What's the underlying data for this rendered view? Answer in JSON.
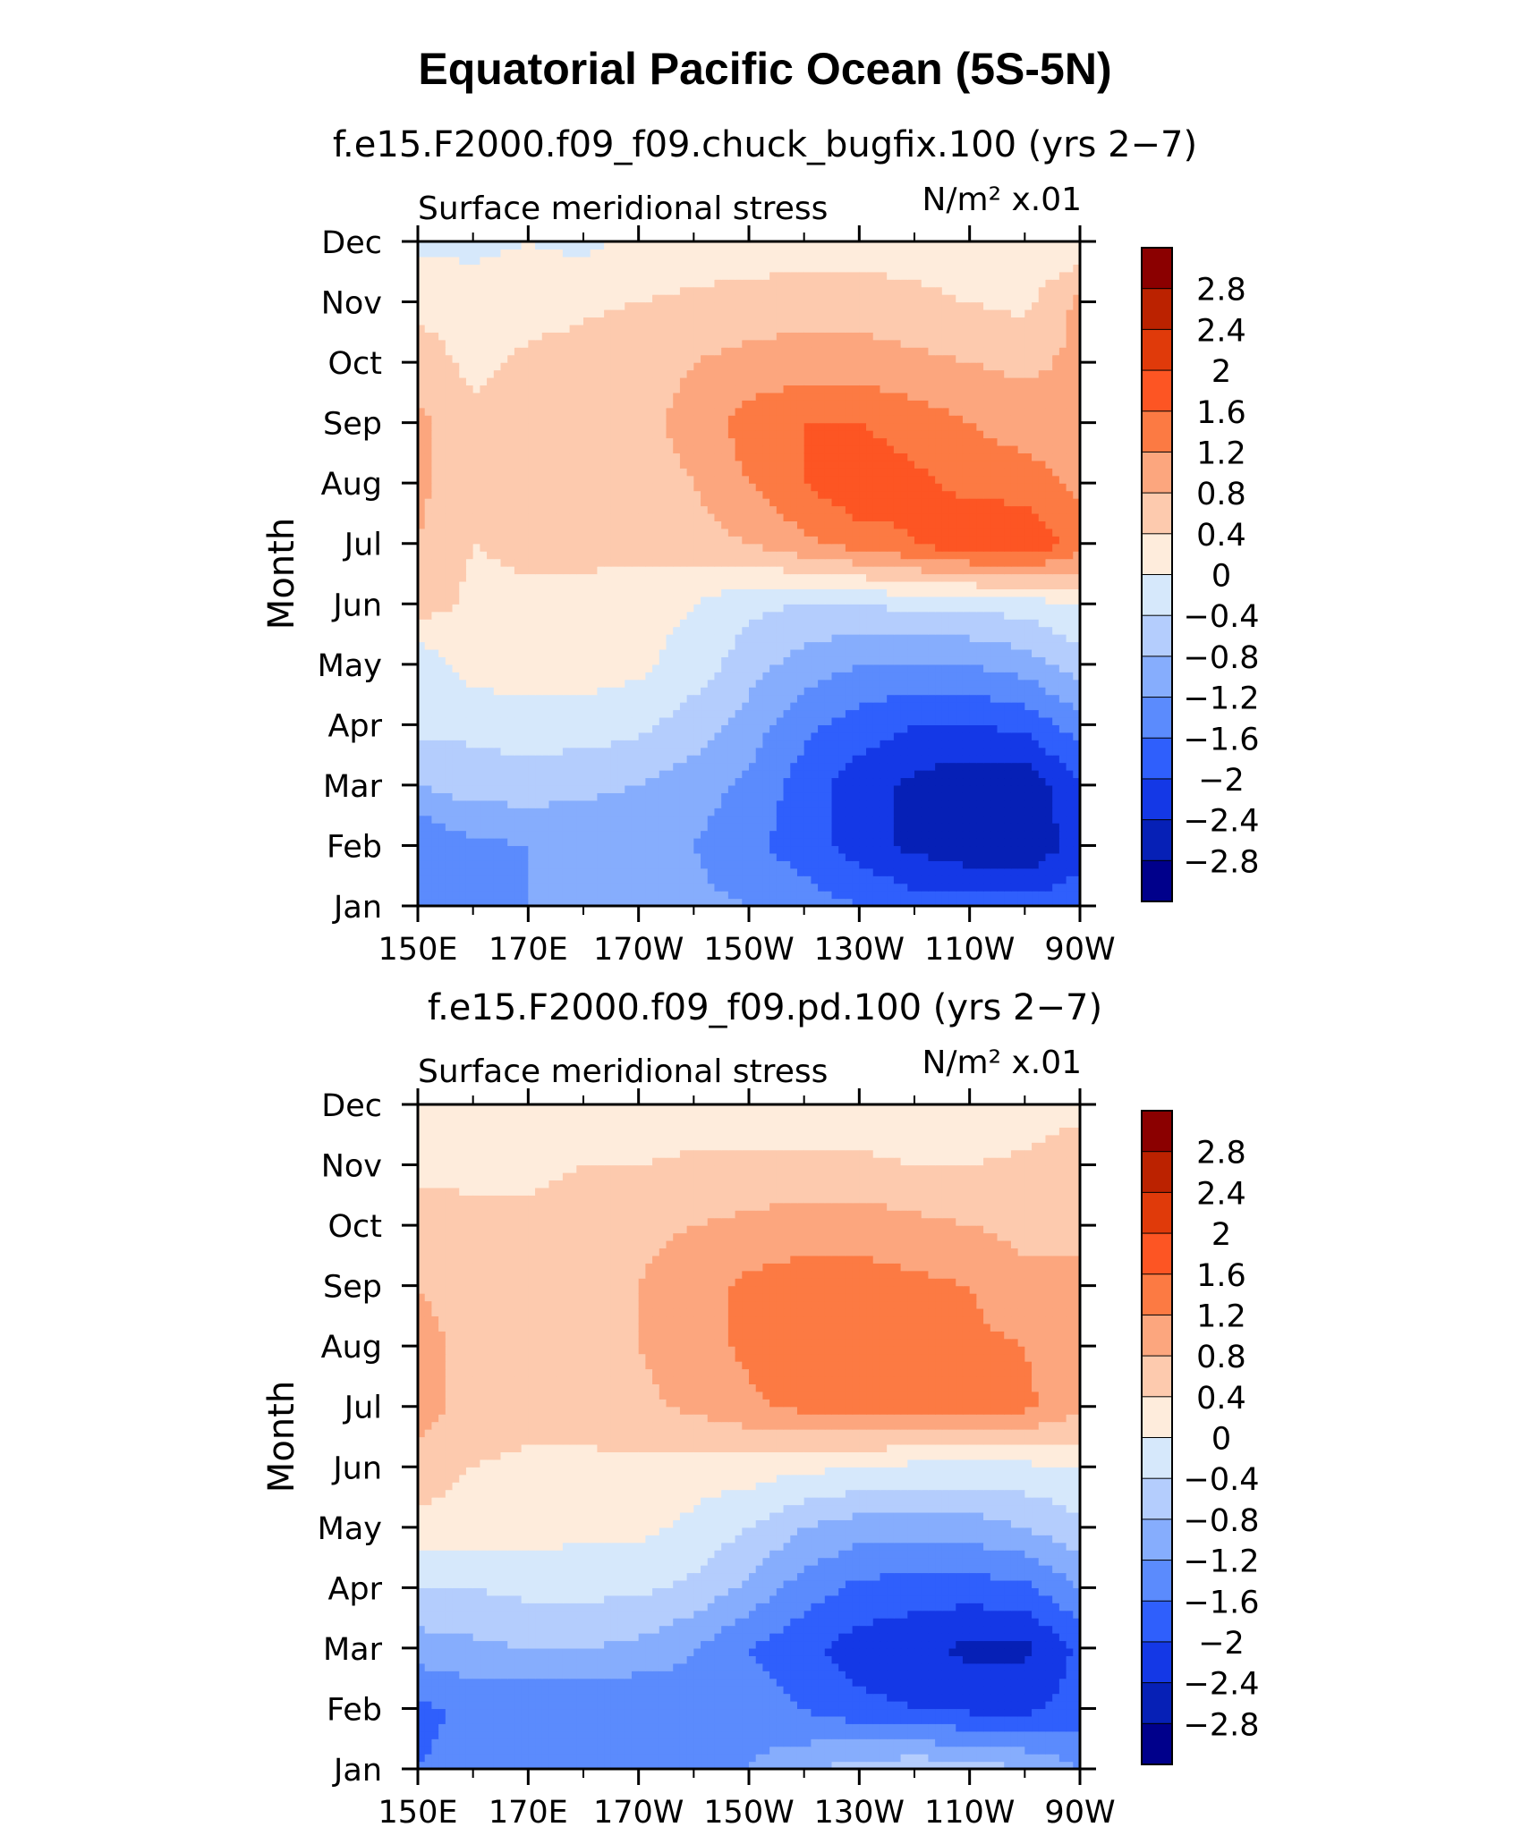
{
  "title": "Equatorial Pacific Ocean (5S-5N)",
  "colormap": {
    "levels": [
      "2.8",
      "2.4",
      "2",
      "1.6",
      "1.2",
      "0.8",
      "0.4",
      "0",
      "−0.4",
      "−0.8",
      "−1.2",
      "−1.6",
      "−2",
      "−2.4",
      "−2.8"
    ],
    "colors": [
      "#8b0000",
      "#bb2200",
      "#e03a0a",
      "#fd5523",
      "#fc7a43",
      "#fca67e",
      "#fdcaae",
      "#feecdc",
      "#d6e8fb",
      "#b4cdfd",
      "#86adfd",
      "#5b8bfd",
      "#2f5ffc",
      "#1438e6",
      "#0620b6",
      "#00008b"
    ]
  },
  "chart_data": [
    {
      "type": "heatmap",
      "title": "f.e15.F2000.f09_f09.chuck_bugfix.100 (yrs 2−7)",
      "subtitle_left": "Surface meridional stress",
      "units": "N/m² x.01",
      "ylabel": "Month",
      "xticks": [
        "150E",
        "170E",
        "170W",
        "150W",
        "130W",
        "110W",
        "90W"
      ],
      "yticks": [
        "Jan",
        "Feb",
        "Mar",
        "Apr",
        "May",
        "Jun",
        "Jul",
        "Aug",
        "Sep",
        "Oct",
        "Nov",
        "Dec"
      ],
      "x_lon": [
        150,
        160,
        170,
        180,
        190,
        200,
        210,
        220,
        230,
        240,
        250,
        260,
        270
      ],
      "months": [
        1,
        2,
        3,
        4,
        5,
        6,
        7,
        8,
        9,
        10,
        11,
        12
      ],
      "values": [
        [
          -1.2,
          -1.2,
          -1.2,
          -1.1,
          -1.1,
          -1.1,
          -1.2,
          -1.4,
          -1.6,
          -1.8,
          -1.8,
          -1.8,
          -1.7
        ],
        [
          -1.6,
          -1.3,
          -1.2,
          -1.1,
          -1.1,
          -1.2,
          -1.5,
          -1.8,
          -2.2,
          -2.5,
          -2.7,
          -2.8,
          -2.2
        ],
        [
          -0.8,
          -0.6,
          -0.6,
          -0.7,
          -0.8,
          -1.0,
          -1.3,
          -1.8,
          -2.2,
          -2.5,
          -2.7,
          -2.7,
          -2.0
        ],
        [
          -0.3,
          -0.3,
          -0.2,
          -0.2,
          -0.3,
          -0.6,
          -1.0,
          -1.5,
          -1.8,
          -2.0,
          -2.0,
          -1.9,
          -1.4
        ],
        [
          -0.3,
          0.2,
          0.2,
          0.2,
          0.1,
          -0.2,
          -0.6,
          -1.0,
          -1.2,
          -1.2,
          -1.2,
          -1.0,
          -0.6
        ],
        [
          0.6,
          0.3,
          0.3,
          0.3,
          0.2,
          0.0,
          -0.3,
          -0.4,
          -0.4,
          -0.3,
          -0.3,
          -0.2,
          0.0
        ],
        [
          0.8,
          0.4,
          0.5,
          0.5,
          0.5,
          0.6,
          0.8,
          1.1,
          1.4,
          1.6,
          1.9,
          2.0,
          1.4
        ],
        [
          0.9,
          0.5,
          0.6,
          0.6,
          0.7,
          0.8,
          1.2,
          1.6,
          1.9,
          1.7,
          1.5,
          1.4,
          1.1
        ],
        [
          0.9,
          0.5,
          0.6,
          0.6,
          0.7,
          0.9,
          1.4,
          1.6,
          1.6,
          1.4,
          1.2,
          1.0,
          0.9
        ],
        [
          0.6,
          0.3,
          0.5,
          0.6,
          0.7,
          0.8,
          0.9,
          1.0,
          1.0,
          0.9,
          0.8,
          0.7,
          0.9
        ],
        [
          0.3,
          0.2,
          0.2,
          0.3,
          0.4,
          0.5,
          0.6,
          0.6,
          0.6,
          0.5,
          0.4,
          0.3,
          0.9
        ],
        [
          -0.1,
          -0.1,
          0.0,
          -0.1,
          0.1,
          0.1,
          0.1,
          0.2,
          0.2,
          0.2,
          0.1,
          0.0,
          0.1
        ]
      ]
    },
    {
      "type": "heatmap",
      "title": "f.e15.F2000.f09_f09.pd.100 (yrs 2−7)",
      "subtitle_left": "Surface meridional stress",
      "units": "N/m² x.01",
      "ylabel": "Month",
      "xticks": [
        "150E",
        "170E",
        "170W",
        "150W",
        "130W",
        "110W",
        "90W"
      ],
      "yticks": [
        "Jan",
        "Feb",
        "Mar",
        "Apr",
        "May",
        "Jun",
        "Jul",
        "Aug",
        "Sep",
        "Oct",
        "Nov",
        "Dec"
      ],
      "x_lon": [
        150,
        160,
        170,
        180,
        190,
        200,
        210,
        220,
        230,
        240,
        250,
        260,
        270
      ],
      "months": [
        1,
        2,
        3,
        4,
        5,
        6,
        7,
        8,
        9,
        10,
        11,
        12
      ],
      "values": [
        [
          -1.6,
          -1.5,
          -1.5,
          -1.5,
          -1.4,
          -1.3,
          -1.2,
          -0.9,
          -0.6,
          -0.5,
          -0.6,
          -0.8,
          -1.2
        ],
        [
          -1.7,
          -1.5,
          -1.6,
          -1.6,
          -1.6,
          -1.4,
          -1.4,
          -1.6,
          -1.9,
          -2.0,
          -2.1,
          -2.1,
          -1.8
        ],
        [
          -1.0,
          -0.9,
          -0.8,
          -0.8,
          -0.9,
          -1.2,
          -1.6,
          -1.9,
          -2.2,
          -2.3,
          -2.5,
          -2.5,
          -1.9
        ],
        [
          -0.4,
          -0.4,
          -0.3,
          -0.3,
          -0.3,
          -0.5,
          -0.9,
          -1.4,
          -1.7,
          -1.8,
          -1.8,
          -1.7,
          -1.2
        ],
        [
          0.3,
          0.2,
          0.2,
          0.1,
          0.1,
          -0.1,
          -0.4,
          -0.8,
          -1.0,
          -1.0,
          -1.0,
          -0.8,
          -0.5
        ],
        [
          0.6,
          0.4,
          0.3,
          0.3,
          0.3,
          0.2,
          0.2,
          0.1,
          0.0,
          -0.1,
          -0.1,
          -0.1,
          0.0
        ],
        [
          1.0,
          0.6,
          0.6,
          0.6,
          0.7,
          0.9,
          1.1,
          1.3,
          1.4,
          1.4,
          1.4,
          1.3,
          0.9
        ],
        [
          1.0,
          0.6,
          0.6,
          0.7,
          0.8,
          1.0,
          1.3,
          1.6,
          1.5,
          1.4,
          1.3,
          1.2,
          0.9
        ],
        [
          0.8,
          0.6,
          0.7,
          0.7,
          0.8,
          1.0,
          1.3,
          1.4,
          1.4,
          1.3,
          1.2,
          0.9,
          0.8
        ],
        [
          0.6,
          0.5,
          0.5,
          0.6,
          0.7,
          0.8,
          0.9,
          1.0,
          1.0,
          0.9,
          0.8,
          0.7,
          0.8
        ],
        [
          0.3,
          0.3,
          0.3,
          0.4,
          0.4,
          0.5,
          0.5,
          0.5,
          0.5,
          0.4,
          0.4,
          0.5,
          0.8
        ],
        [
          0.0,
          0.1,
          0.1,
          0.1,
          0.1,
          0.1,
          0.1,
          0.0,
          0.1,
          0.1,
          0.1,
          0.1,
          0.2
        ]
      ]
    }
  ]
}
